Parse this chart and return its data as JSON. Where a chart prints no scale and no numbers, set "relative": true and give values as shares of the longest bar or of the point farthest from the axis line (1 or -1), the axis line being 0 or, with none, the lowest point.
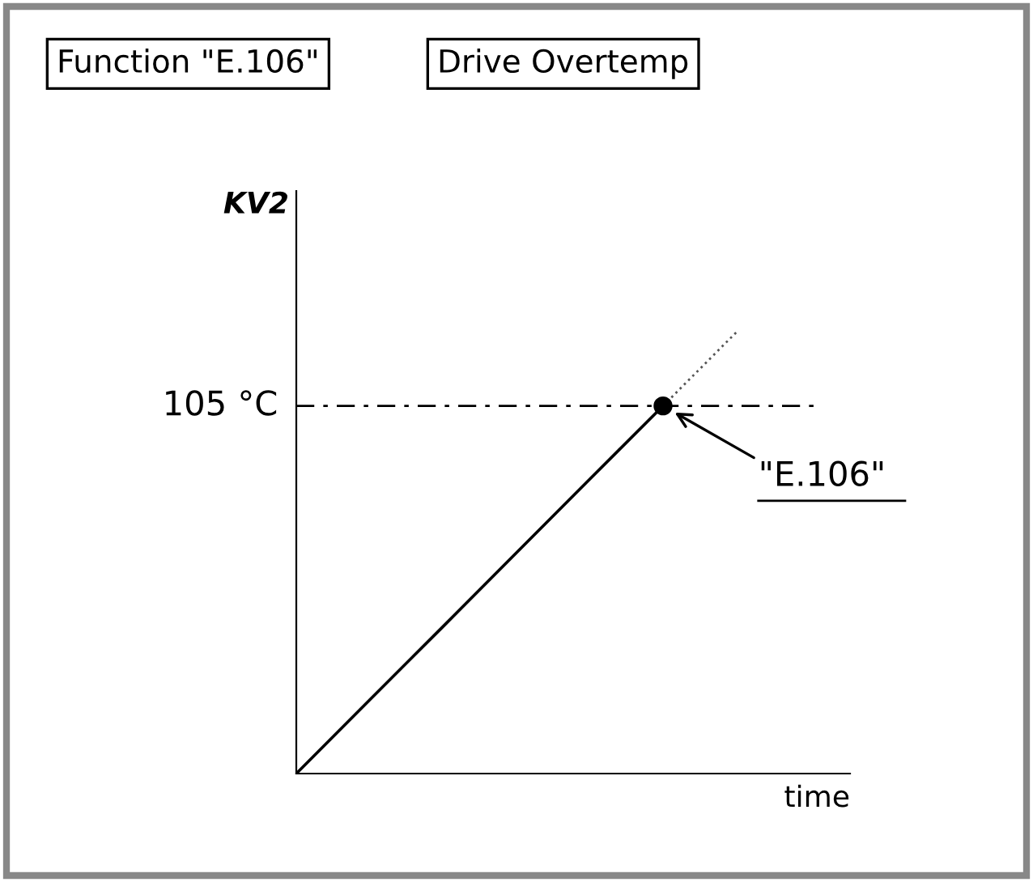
{
  "chart_data": {
    "type": "line",
    "title": "Function \"E.106\"",
    "subtitle": "Drive Overtemp",
    "ylabel": "KV2",
    "xlabel": "time",
    "relative": true,
    "categories": [
      null,
      null,
      null,
      null,
      null,
      null,
      null
    ],
    "series": [
      {
        "color": "#000000",
        "line_style": "solid",
        "values": [
          0,
          0.167,
          0.333,
          0.5,
          0.667,
          0.833,
          null
        ]
      },
      {
        "color": "#555555",
        "line_style": "dotted",
        "values": [
          null,
          null,
          null,
          null,
          null,
          0.833,
          1
        ]
      }
    ],
    "ref_lines": [
      {
        "axis": "y",
        "value": 0.833,
        "label": "105 °C",
        "color": "#000000",
        "line_style": "dashed"
      }
    ],
    "annotations": [
      {
        "text": "\"E.106\"",
        "y": 0.833
      }
    ],
    "legend": false,
    "grid": false
  }
}
